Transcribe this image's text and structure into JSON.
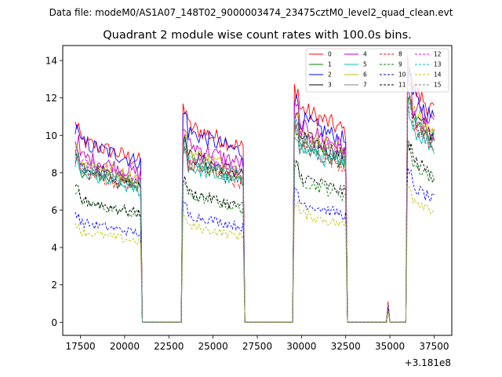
{
  "suptitle": "Data file: modeM0/AS1A07_148T02_9000003474_23475cztM0_level2_quad_clean.evt",
  "chart_data": {
    "type": "line",
    "title": "Quadrant 2 module wise count rates with 100.0s bins.",
    "xlabel": "",
    "ylabel": "",
    "x_offset_label": "+3.181e8",
    "xlim": [
      16500,
      38500
    ],
    "ylim": [
      -0.7,
      14.8
    ],
    "x_ticks": [
      17500,
      20000,
      22500,
      25000,
      27500,
      30000,
      32500,
      35000,
      37500
    ],
    "x_tick_labels": [
      "17500",
      "20000",
      "22500",
      "25000",
      "27500",
      "30000",
      "32500",
      "35000",
      "37500"
    ],
    "y_ticks": [
      0,
      2,
      4,
      6,
      8,
      10,
      12,
      14
    ],
    "y_tick_labels": [
      "0",
      "2",
      "4",
      "6",
      "8",
      "10",
      "12",
      "14"
    ],
    "legend_position": "top-right",
    "x_bin_width": 100,
    "x_start": 17200,
    "x_end": 37500,
    "segments": [
      {
        "start": 17200,
        "end": 20900
      },
      {
        "start": 23300,
        "end": 26700
      },
      {
        "start": 29600,
        "end": 32500
      },
      {
        "start": 34900,
        "end": 34900
      },
      {
        "start": 36000,
        "end": 37500
      }
    ],
    "series": [
      {
        "name": "0",
        "color": "#ff0000",
        "dash": "solid",
        "segment_levels": [
          9.8,
          10.6,
          11.6,
          1.1,
          12.8
        ]
      },
      {
        "name": "1",
        "color": "#008000",
        "dash": "solid",
        "segment_levels": [
          8.2,
          8.6,
          9.7,
          1.0,
          10.9
        ]
      },
      {
        "name": "2",
        "color": "#0000ff",
        "dash": "solid",
        "segment_levels": [
          9.7,
          10.3,
          11.0,
          1.0,
          12.3
        ]
      },
      {
        "name": "3",
        "color": "#000000",
        "dash": "solid",
        "segment_levels": [
          8.5,
          9.0,
          10.1,
          1.0,
          11.3
        ]
      },
      {
        "name": "4",
        "color": "#bf00bf",
        "dash": "solid",
        "segment_levels": [
          9.0,
          9.6,
          10.6,
          1.0,
          11.8
        ]
      },
      {
        "name": "5",
        "color": "#00bfbf",
        "dash": "solid",
        "segment_levels": [
          8.0,
          8.4,
          9.4,
          1.0,
          10.6
        ]
      },
      {
        "name": "6",
        "color": "#bfbf00",
        "dash": "solid",
        "segment_levels": [
          8.7,
          9.2,
          10.3,
          1.0,
          11.5
        ]
      },
      {
        "name": "7",
        "color": "#808080",
        "dash": "solid",
        "segment_levels": [
          8.4,
          8.9,
          10.0,
          1.0,
          11.2
        ]
      },
      {
        "name": "8",
        "color": "#ff0000",
        "dash": "dashed",
        "segment_levels": [
          8.1,
          8.5,
          9.5,
          1.0,
          10.8
        ]
      },
      {
        "name": "9",
        "color": "#008000",
        "dash": "dashed",
        "segment_levels": [
          6.5,
          6.9,
          7.7,
          0.8,
          8.7
        ]
      },
      {
        "name": "10",
        "color": "#0000ff",
        "dash": "dashed",
        "segment_levels": [
          5.4,
          5.8,
          6.5,
          0.7,
          7.4
        ]
      },
      {
        "name": "11",
        "color": "#000000",
        "dash": "dashed",
        "segment_levels": [
          6.6,
          7.0,
          7.9,
          0.8,
          8.9
        ]
      },
      {
        "name": "12",
        "color": "#ff00ff",
        "dash": "dashed",
        "segment_levels": [
          8.6,
          9.1,
          10.2,
          1.0,
          11.4
        ]
      },
      {
        "name": "13",
        "color": "#00bfbf",
        "dash": "dashed",
        "segment_levels": [
          8.3,
          8.8,
          9.8,
          1.0,
          11.0
        ]
      },
      {
        "name": "14",
        "color": "#bfbf00",
        "dash": "dashed",
        "segment_levels": [
          4.9,
          5.2,
          5.9,
          0.6,
          6.8
        ]
      },
      {
        "name": "15",
        "color": "#808080",
        "dash": "dashed",
        "segment_levels": [
          8.2,
          8.7,
          9.6,
          1.0,
          10.8
        ]
      }
    ]
  }
}
